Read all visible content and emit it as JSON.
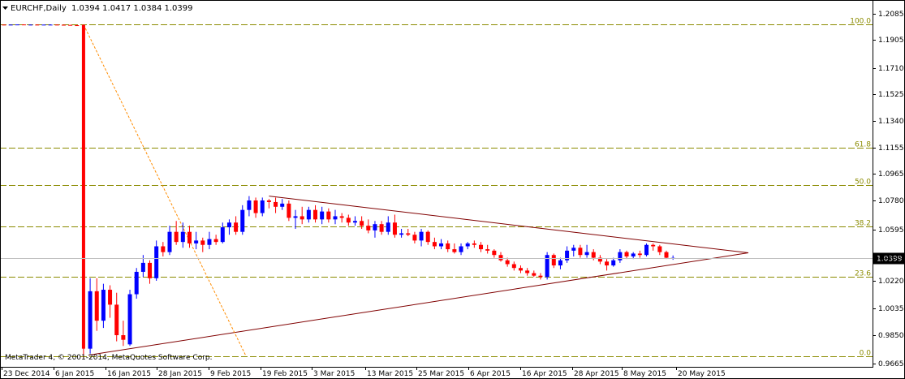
{
  "title": {
    "symbol": "EURCHF,Daily",
    "ohlc": "1.0394 1.0417 1.0384 1.0399"
  },
  "copyright": "MetaTrader 4, © 2001-2014, MetaQuotes Software Corp.",
  "current_price": "1.0399",
  "colors": {
    "bull": "#0000ff",
    "bear": "#ff0000",
    "fib": "#8b8b00",
    "trend": "#800000",
    "fan": "#ff8c00"
  },
  "chart_data": {
    "type": "candlestick",
    "ylim": [
      0.9665,
      2.0085
    ],
    "y_ticks": [
      "1.2085",
      "1.1905",
      "1.1710",
      "1.1525",
      "1.1340",
      "1.1155",
      "1.0965",
      "1.0780",
      "1.0595",
      "1.0410",
      "1.0220",
      "1.0035",
      "0.9850",
      "0.9665"
    ],
    "x_ticks": [
      "23 Dec 2014",
      "6 Jan 2015",
      "16 Jan 2015",
      "28 Jan 2015",
      "9 Feb 2015",
      "19 Feb 2015",
      "3 Mar 2015",
      "13 Mar 2015",
      "25 Mar 2015",
      "6 Apr 2015",
      "16 Apr 2015",
      "28 Apr 2015",
      "8 May 2015",
      "20 May 2015"
    ],
    "fib_levels": [
      {
        "label": "100.0",
        "price": 1.201
      },
      {
        "label": "61.8",
        "price": 1.1155
      },
      {
        "label": "50.0",
        "price": 1.0885
      },
      {
        "label": "38.2",
        "price": 1.0615
      },
      {
        "label": "23.6",
        "price": 1.025
      },
      {
        "label": "0.0",
        "price": 0.9715
      }
    ],
    "current": 1.0399,
    "candles": [
      [
        1.201,
        1.201,
        1.2009,
        1.2009
      ],
      [
        1.2009,
        1.201,
        1.2009,
        1.201
      ],
      [
        1.201,
        1.2011,
        1.201,
        1.2011
      ],
      [
        1.2011,
        1.2011,
        1.201,
        1.201
      ],
      [
        1.201,
        1.2011,
        1.201,
        1.201
      ],
      [
        1.201,
        1.2011,
        1.2009,
        1.2009
      ],
      [
        1.2009,
        1.201,
        1.2009,
        1.201
      ],
      [
        1.201,
        1.2011,
        1.2009,
        1.201
      ],
      [
        1.201,
        1.201,
        1.2009,
        1.2009
      ],
      [
        1.2009,
        1.201,
        1.2008,
        1.2008
      ],
      [
        1.2008,
        1.2009,
        1.2006,
        1.2006
      ],
      [
        1.2006,
        1.2008,
        1.2002,
        1.2003
      ],
      [
        1.2008,
        1.2012,
        0.97,
        0.9762
      ],
      [
        0.9762,
        1.024,
        0.973,
        1.015
      ],
      [
        1.015,
        1.024,
        0.988,
        0.995
      ],
      [
        0.995,
        1.02,
        0.99,
        1.016
      ],
      [
        1.016,
        1.019,
        0.997,
        1.006
      ],
      [
        1.006,
        1.014,
        0.981,
        0.985
      ],
      [
        0.985,
        0.995,
        0.978,
        0.982
      ],
      [
        0.979,
        1.016,
        0.978,
        1.013
      ],
      [
        1.013,
        1.032,
        1.01,
        1.029
      ],
      [
        1.029,
        1.042,
        1.025,
        1.036
      ],
      [
        1.036,
        1.038,
        1.02,
        1.024
      ],
      [
        1.024,
        1.052,
        1.022,
        1.048
      ],
      [
        1.048,
        1.051,
        1.041,
        1.044
      ],
      [
        1.044,
        1.062,
        1.042,
        1.058
      ],
      [
        1.058,
        1.065,
        1.049,
        1.051
      ],
      [
        1.051,
        1.064,
        1.047,
        1.058
      ],
      [
        1.058,
        1.062,
        1.047,
        1.05
      ],
      [
        1.05,
        1.058,
        1.046,
        1.052
      ],
      [
        1.052,
        1.054,
        1.044,
        1.049
      ],
      [
        1.049,
        1.058,
        1.046,
        1.053
      ],
      [
        1.053,
        1.056,
        1.049,
        1.051
      ],
      [
        1.051,
        1.064,
        1.05,
        1.061
      ],
      [
        1.061,
        1.066,
        1.056,
        1.064
      ],
      [
        1.064,
        1.068,
        1.056,
        1.058
      ],
      [
        1.058,
        1.075,
        1.056,
        1.072
      ],
      [
        1.072,
        1.081,
        1.068,
        1.078
      ],
      [
        1.078,
        1.08,
        1.067,
        1.07
      ],
      [
        1.07,
        1.08,
        1.068,
        1.078
      ],
      [
        1.078,
        1.079,
        1.073,
        1.077
      ],
      [
        1.077,
        1.08,
        1.07,
        1.074
      ],
      [
        1.074,
        1.079,
        1.072,
        1.076
      ],
      [
        1.076,
        1.078,
        1.065,
        1.067
      ],
      [
        1.067,
        1.072,
        1.06,
        1.068
      ],
      [
        1.068,
        1.074,
        1.063,
        1.066
      ],
      [
        1.066,
        1.074,
        1.064,
        1.072
      ],
      [
        1.072,
        1.075,
        1.064,
        1.066
      ],
      [
        1.066,
        1.074,
        1.063,
        1.071
      ],
      [
        1.071,
        1.073,
        1.064,
        1.066
      ],
      [
        1.066,
        1.072,
        1.063,
        1.068
      ],
      [
        1.068,
        1.07,
        1.064,
        1.067
      ],
      [
        1.067,
        1.069,
        1.062,
        1.064
      ],
      [
        1.064,
        1.068,
        1.062,
        1.065
      ],
      [
        1.065,
        1.068,
        1.06,
        1.062
      ],
      [
        1.062,
        1.066,
        1.057,
        1.059
      ],
      [
        1.059,
        1.065,
        1.054,
        1.063
      ],
      [
        1.063,
        1.065,
        1.056,
        1.058
      ],
      [
        1.058,
        1.068,
        1.056,
        1.064
      ],
      [
        1.064,
        1.069,
        1.054,
        1.056
      ],
      [
        1.056,
        1.06,
        1.054,
        1.057
      ],
      [
        1.057,
        1.06,
        1.055,
        1.056
      ],
      [
        1.056,
        1.058,
        1.05,
        1.052
      ],
      [
        1.052,
        1.06,
        1.048,
        1.058
      ],
      [
        1.058,
        1.059,
        1.049,
        1.051
      ],
      [
        1.051,
        1.054,
        1.046,
        1.048
      ],
      [
        1.048,
        1.053,
        1.046,
        1.05
      ],
      [
        1.05,
        1.052,
        1.044,
        1.046
      ],
      [
        1.046,
        1.05,
        1.043,
        1.044
      ],
      [
        1.044,
        1.05,
        1.042,
        1.048
      ],
      [
        1.048,
        1.051,
        1.046,
        1.05
      ],
      [
        1.05,
        1.052,
        1.047,
        1.049
      ],
      [
        1.049,
        1.051,
        1.044,
        1.046
      ],
      [
        1.046,
        1.049,
        1.043,
        1.045
      ],
      [
        1.045,
        1.046,
        1.04,
        1.042
      ],
      [
        1.042,
        1.044,
        1.037,
        1.038
      ],
      [
        1.038,
        1.04,
        1.033,
        1.035
      ],
      [
        1.035,
        1.037,
        1.03,
        1.032
      ],
      [
        1.032,
        1.034,
        1.028,
        1.03
      ],
      [
        1.03,
        1.032,
        1.026,
        1.028
      ],
      [
        1.028,
        1.03,
        1.025,
        1.026
      ],
      [
        1.026,
        1.028,
        1.023,
        1.025
      ],
      [
        1.025,
        1.044,
        1.023,
        1.042
      ],
      [
        1.042,
        1.043,
        1.032,
        1.034
      ],
      [
        1.034,
        1.04,
        1.031,
        1.038
      ],
      [
        1.038,
        1.048,
        1.036,
        1.045
      ],
      [
        1.045,
        1.049,
        1.041,
        1.047
      ],
      [
        1.047,
        1.049,
        1.04,
        1.042
      ],
      [
        1.042,
        1.049,
        1.04,
        1.044
      ],
      [
        1.044,
        1.046,
        1.038,
        1.04
      ],
      [
        1.04,
        1.042,
        1.035,
        1.037
      ],
      [
        1.037,
        1.039,
        1.03,
        1.034
      ],
      [
        1.034,
        1.04,
        1.033,
        1.038
      ],
      [
        1.038,
        1.046,
        1.036,
        1.044
      ],
      [
        1.044,
        1.045,
        1.039,
        1.041
      ],
      [
        1.041,
        1.044,
        1.039,
        1.043
      ],
      [
        1.043,
        1.045,
        1.04,
        1.042
      ],
      [
        1.042,
        1.05,
        1.041,
        1.049
      ],
      [
        1.049,
        1.05,
        1.045,
        1.048
      ],
      [
        1.048,
        1.049,
        1.042,
        1.044
      ],
      [
        1.044,
        1.045,
        1.039,
        1.04
      ],
      [
        1.0394,
        1.0417,
        1.0384,
        1.0399
      ]
    ]
  }
}
